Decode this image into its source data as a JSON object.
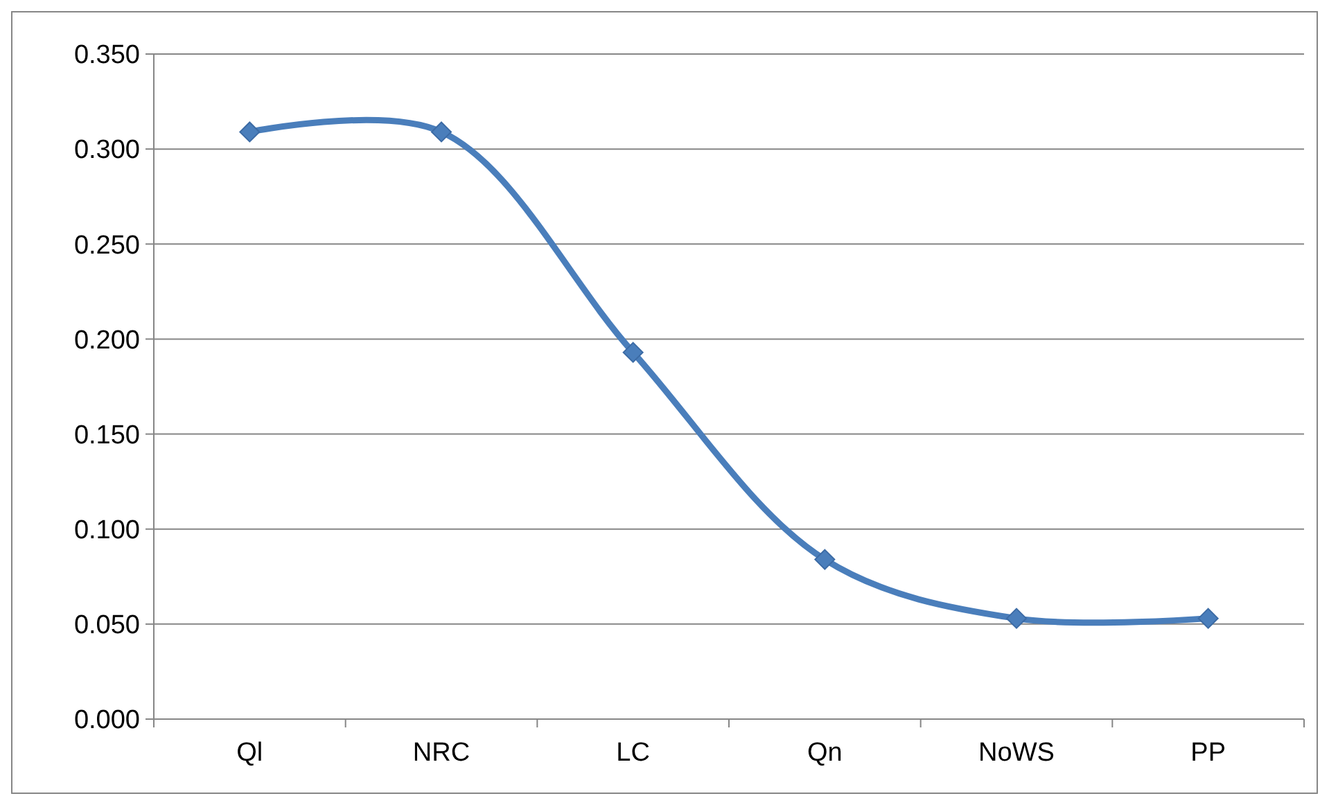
{
  "chart_data": {
    "type": "line",
    "categories": [
      "Ql",
      "NRC",
      "LC",
      "Qn",
      "NoWS",
      "PP"
    ],
    "series": [
      {
        "color": "#4a7ebb",
        "values": [
          0.309,
          0.309,
          0.193,
          0.084,
          0.053,
          0.053
        ]
      }
    ],
    "ylim": [
      0,
      0.35
    ],
    "yticks": [
      {
        "value": 0,
        "label": "0.000"
      },
      {
        "value": 0.05,
        "label": "0.050"
      },
      {
        "value": 0.1,
        "label": "0.100"
      },
      {
        "value": 0.15,
        "label": "0.150"
      },
      {
        "value": 0.2,
        "label": "0.200"
      },
      {
        "value": 0.25,
        "label": "0.250"
      },
      {
        "value": 0.3,
        "label": "0.300"
      },
      {
        "value": 0.35,
        "label": "0.350"
      }
    ],
    "grid": "y",
    "marker": "diamond",
    "line_style": "solid"
  }
}
